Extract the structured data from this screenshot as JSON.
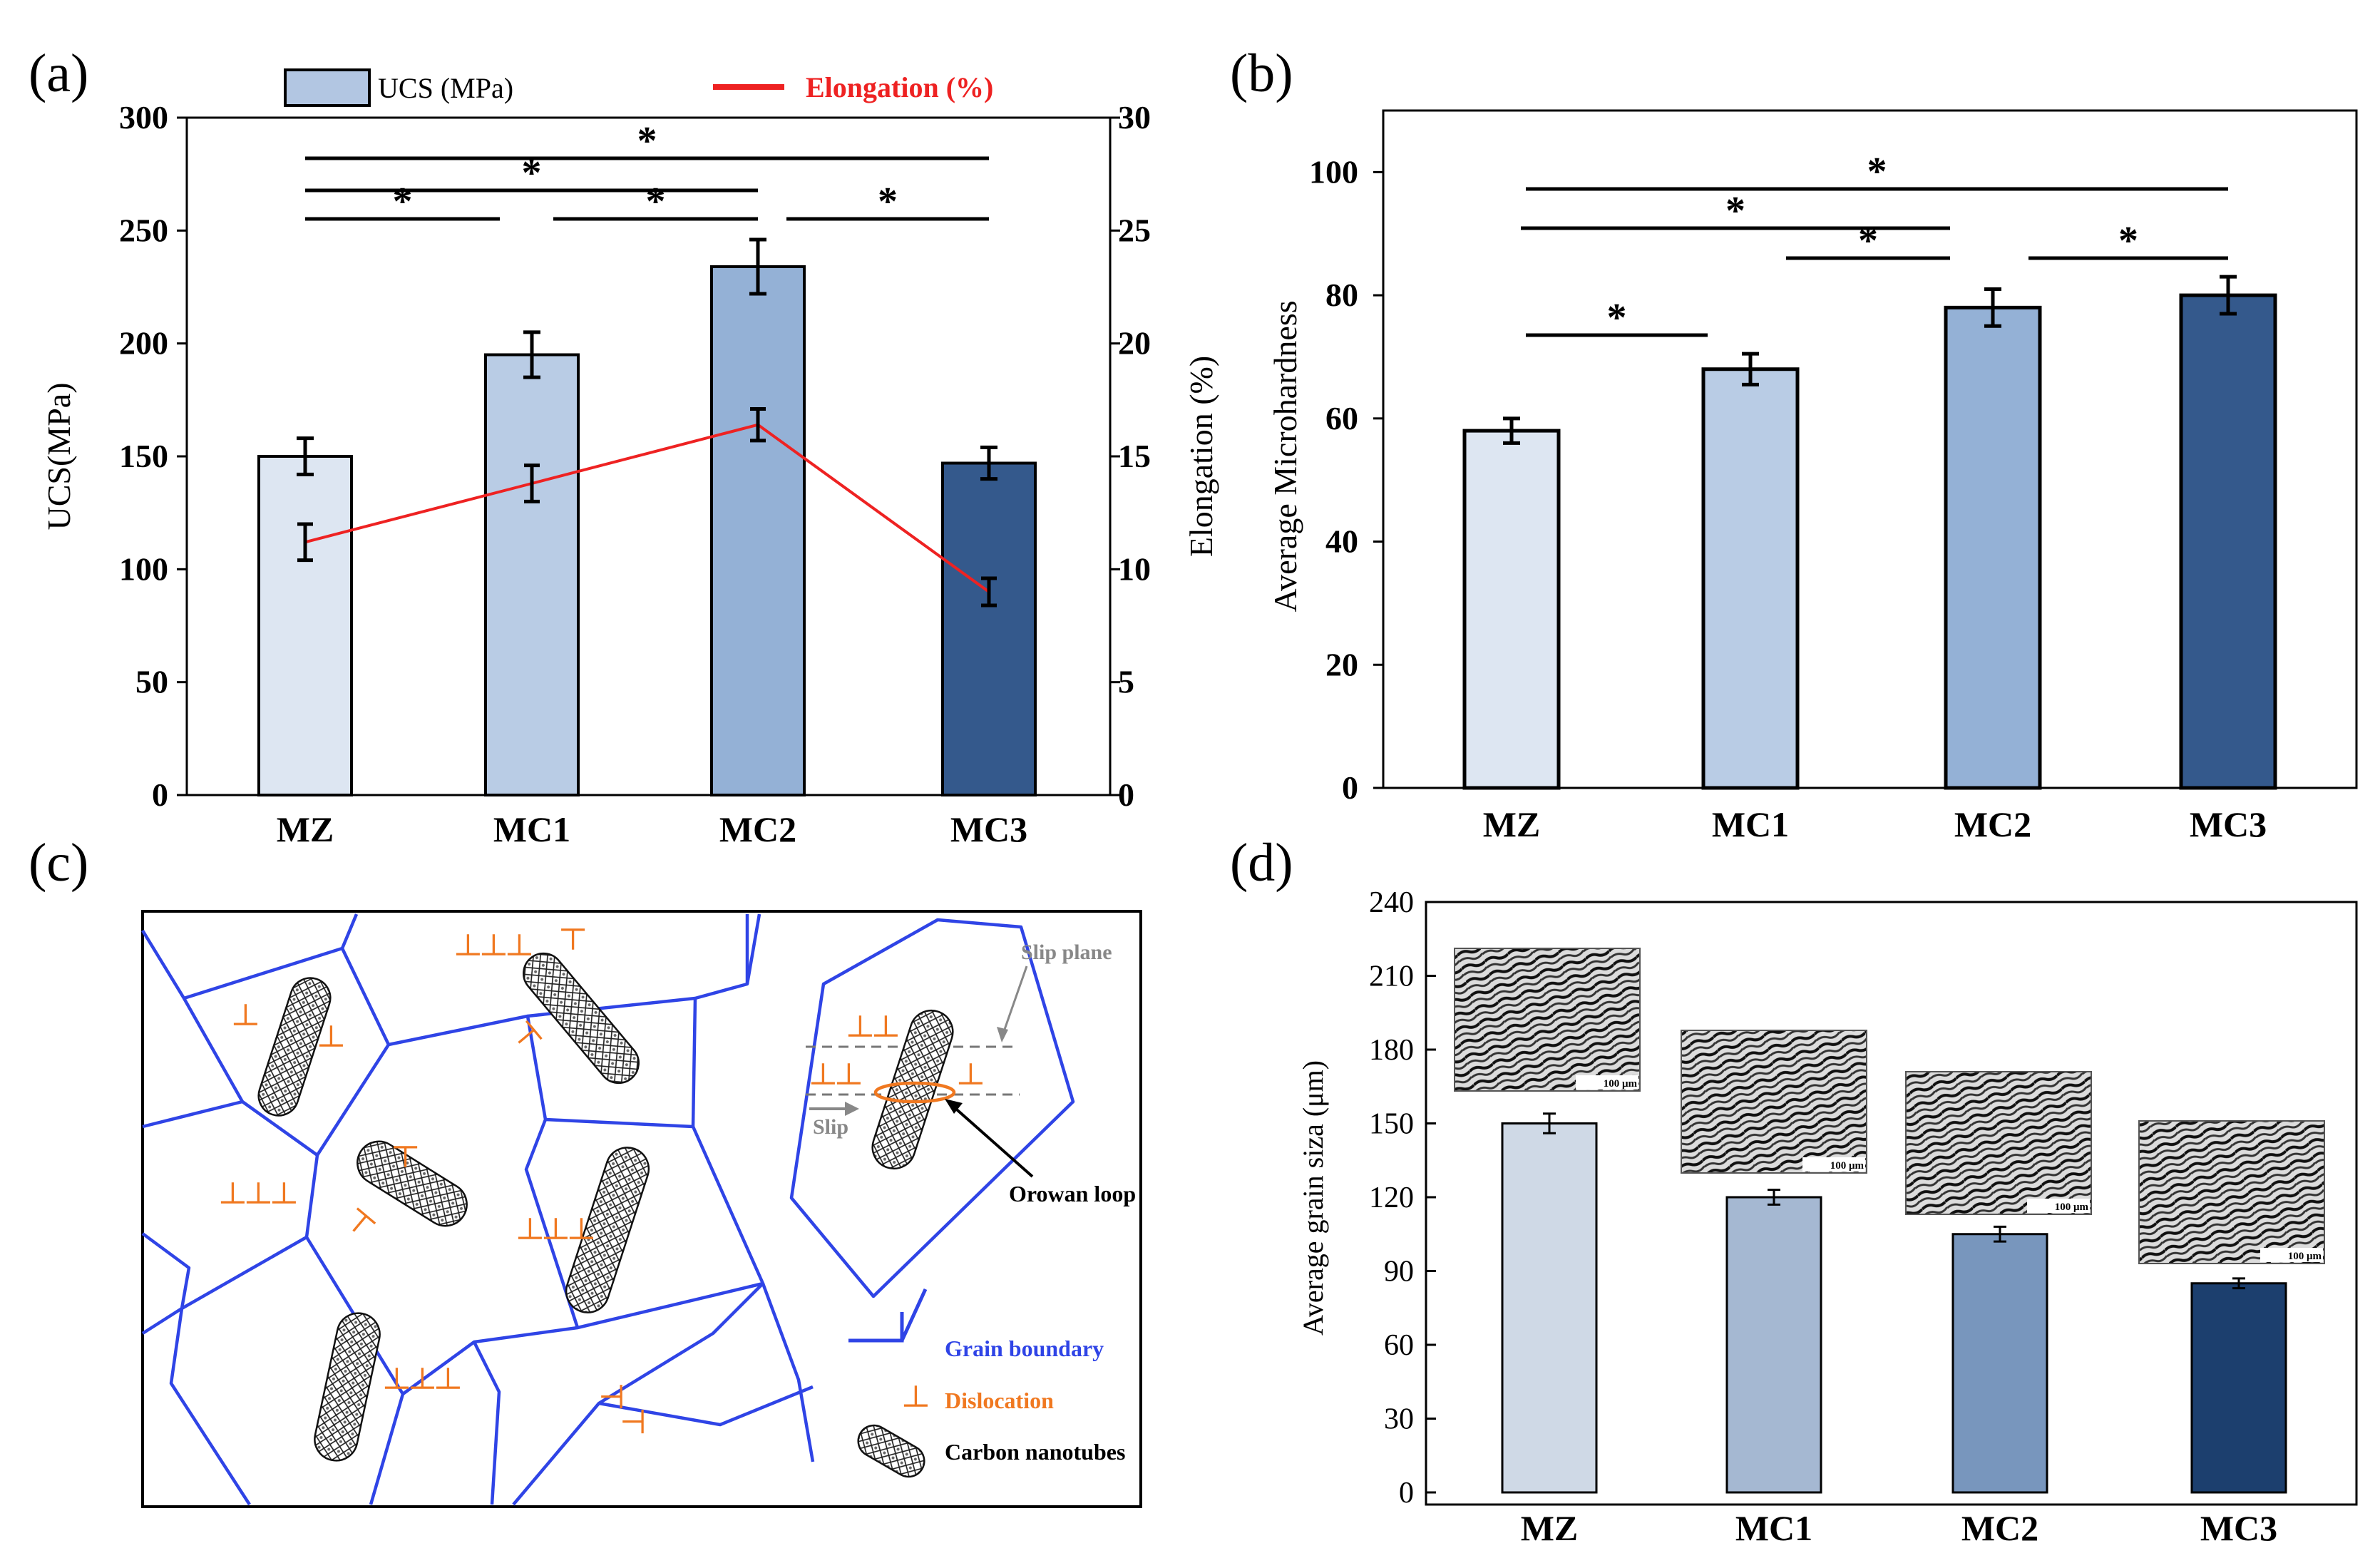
{
  "colors": {
    "mz": "#dde6f2",
    "mc1": "#b9cce5",
    "mc2": "#94b1d6",
    "mc3": "#34598c",
    "d_mz": "#cfd9e6",
    "d_mc1": "#a5b8d2",
    "d_mc2": "#7896bd",
    "d_mc3": "#1c3f6e",
    "elong": "#ee2222",
    "boundary": "#2f44e6",
    "dislocation": "#f07820",
    "slip": "#888888"
  },
  "chart_data": [
    {
      "id": "a",
      "panel_label": "(a)",
      "type": "bar",
      "categories": [
        "MZ",
        "MC1",
        "MC2",
        "MC3"
      ],
      "series": [
        {
          "name": "UCS (MPa)",
          "type": "bar",
          "values": [
            150,
            195,
            234,
            147
          ],
          "errors": [
            8,
            10,
            12,
            7
          ]
        },
        {
          "name": "Elongation (%)",
          "type": "line",
          "axis": "right",
          "values": [
            11.2,
            13.8,
            16.4,
            9.0
          ],
          "errors": [
            0.8,
            0.8,
            0.7,
            0.6
          ]
        }
      ],
      "ylabel": "UCS(MPa)",
      "ylabel_right": "Elongation (%)",
      "ylim": [
        0,
        300
      ],
      "ylim_right": [
        0,
        30
      ],
      "yticks": [
        "0",
        "50",
        "100",
        "150",
        "200",
        "250",
        "300"
      ],
      "yticks_right": [
        "0",
        "5",
        "10",
        "15",
        "20",
        "25",
        "30"
      ],
      "legend": [
        "UCS (MPa)",
        "Elongation (%)"
      ],
      "significance": [
        {
          "from": "MZ",
          "to": "MC3",
          "label": "*"
        },
        {
          "from": "MZ",
          "to": "MC2",
          "label": "*"
        },
        {
          "from": "MZ",
          "to": "MC1",
          "label": "*"
        },
        {
          "from": "MC1",
          "to": "MC2",
          "label": "*"
        },
        {
          "from": "MC2",
          "to": "MC3",
          "label": "*"
        }
      ]
    },
    {
      "id": "b",
      "panel_label": "(b)",
      "type": "bar",
      "categories": [
        "MZ",
        "MC1",
        "MC2",
        "MC3"
      ],
      "values": [
        58,
        68,
        78,
        80
      ],
      "errors": [
        2,
        2.5,
        3,
        3
      ],
      "ylabel": "Average Microhardness",
      "ylim": [
        0,
        110
      ],
      "yticks": [
        "0",
        "20",
        "40",
        "60",
        "80",
        "100"
      ],
      "significance": [
        {
          "from": "MZ",
          "to": "MC3",
          "label": "*"
        },
        {
          "from": "MZ",
          "to": "MC2",
          "label": "*"
        },
        {
          "from": "MC1",
          "to": "MC2",
          "label": "*"
        },
        {
          "from": "MC2",
          "to": "MC3",
          "label": "*"
        },
        {
          "from": "MZ",
          "to": "MC1",
          "label": "*"
        }
      ]
    },
    {
      "id": "d",
      "panel_label": "(d)",
      "type": "bar",
      "categories": [
        "MZ",
        "MC1",
        "MC2",
        "MC3"
      ],
      "values": [
        150,
        120,
        105,
        85
      ],
      "errors": [
        4,
        3,
        3,
        2
      ],
      "ylabel": "Average grain siza (μm)",
      "ylim": [
        0,
        240
      ],
      "yticks": [
        "0",
        "30",
        "60",
        "90",
        "120",
        "150",
        "180",
        "210",
        "240"
      ],
      "inset_scale_label": "100 μm"
    }
  ],
  "panel_c": {
    "panel_label": "(c)",
    "dislocation_symbol": "┴",
    "slip_plane": "Slip plane",
    "slip": "Slip",
    "orowan_loop": "Orowan loop",
    "legend_grain_boundary": "Grain boundary",
    "legend_dislocation": "Dislocation",
    "legend_cnt": "Carbon nanotubes"
  }
}
